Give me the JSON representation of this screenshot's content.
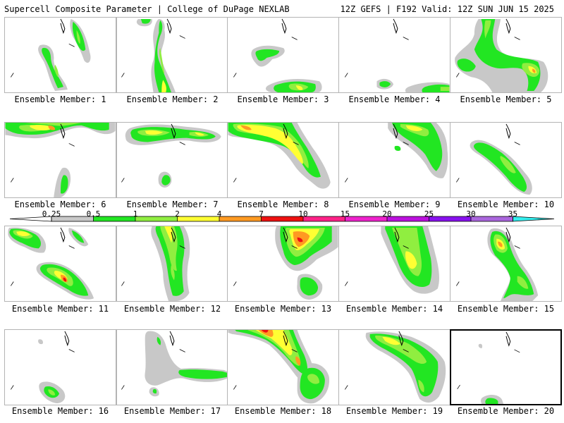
{
  "header": {
    "left": "Supercell Composite Parameter | College of DuPage NEXLAB",
    "right": "12Z GEFS | F192 Valid: 12Z SUN JUN 15 2025"
  },
  "colorbar": {
    "ticks": [
      "0.25",
      "0.5",
      "1",
      "2",
      "4",
      "7",
      "10",
      "15",
      "20",
      "25",
      "30",
      "35"
    ],
    "colors": [
      "#c8c8c8",
      "#22e622",
      "#90ee40",
      "#ffff33",
      "#ff9a22",
      "#ee1111",
      "#ff2288",
      "#ee22cc",
      "#bb11dd",
      "#8811ee",
      "#aa66dd",
      "#33eeee"
    ]
  },
  "levels": {
    "l1": "#c8c8c8",
    "l2": "#22e622",
    "l3": "#90ee40",
    "l4": "#ffff33",
    "l5": "#ff9a22",
    "l6": "#ee1111"
  },
  "members": [
    {
      "label": "Ensemble Member: 1",
      "max_level": 3
    },
    {
      "label": "Ensemble Member: 2",
      "max_level": 4
    },
    {
      "label": "Ensemble Member: 3",
      "max_level": 4
    },
    {
      "label": "Ensemble Member: 4",
      "max_level": 3
    },
    {
      "label": "Ensemble Member: 5",
      "max_level": 5
    },
    {
      "label": "Ensemble Member: 6",
      "max_level": 5
    },
    {
      "label": "Ensemble Member: 7",
      "max_level": 4
    },
    {
      "label": "Ensemble Member: 8",
      "max_level": 5
    },
    {
      "label": "Ensemble Member: 9",
      "max_level": 4
    },
    {
      "label": "Ensemble Member: 10",
      "max_level": 3
    },
    {
      "label": "Ensemble Member: 11",
      "max_level": 6
    },
    {
      "label": "Ensemble Member: 12",
      "max_level": 4
    },
    {
      "label": "Ensemble Member: 13",
      "max_level": 6
    },
    {
      "label": "Ensemble Member: 14",
      "max_level": 4
    },
    {
      "label": "Ensemble Member: 15",
      "max_level": 5
    },
    {
      "label": "Ensemble Member: 16",
      "max_level": 3
    },
    {
      "label": "Ensemble Member: 17",
      "max_level": 3
    },
    {
      "label": "Ensemble Member: 18",
      "max_level": 6
    },
    {
      "label": "Ensemble Member: 19",
      "max_level": 4
    },
    {
      "label": "Ensemble Member: 20",
      "max_level": 3
    }
  ]
}
